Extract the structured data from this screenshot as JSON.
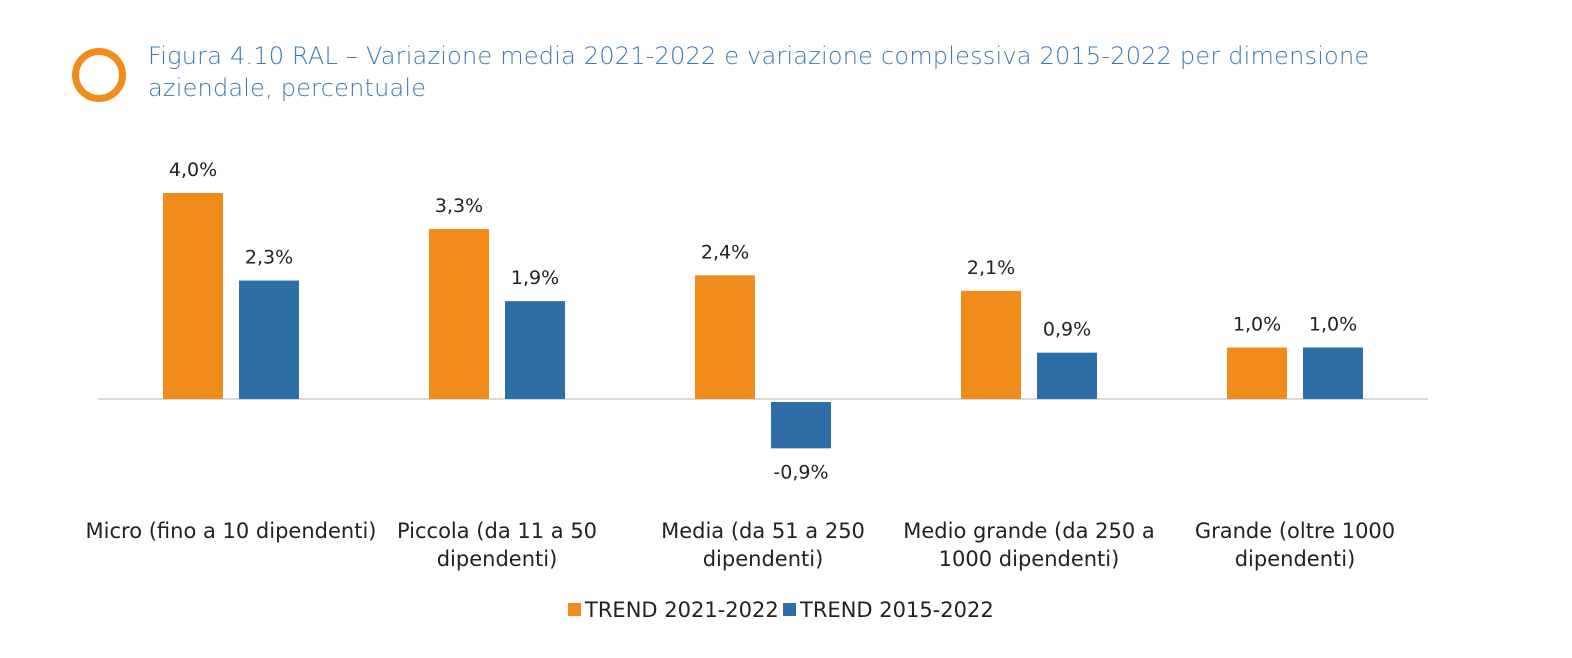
{
  "title": "Figura 4.10 RAL – Variazione media 2021-2022 e variazione complessiva 2015-2022 per dimensione aziendale, percentuale",
  "icon": "ring-icon",
  "chart_data": {
    "type": "bar",
    "title": "Figura 4.10 RAL – Variazione media 2021-2022 e variazione complessiva 2015-2022 per dimensione aziendale, percentuale",
    "xlabel": "",
    "ylabel": "",
    "grid": false,
    "ylim": [
      -1.5,
      4.8
    ],
    "legend_position": "bottom",
    "categories": [
      [
        "Micro (fino a 10 dipendenti)"
      ],
      [
        "Piccola (da 11 a 50",
        "dipendenti)"
      ],
      [
        "Media (da 51 a 250",
        "dipendenti)"
      ],
      [
        "Medio grande (da 250 a",
        "1000 dipendenti)"
      ],
      [
        "Grande (oltre 1000",
        "dipendenti)"
      ]
    ],
    "series": [
      {
        "name": "TREND 2021-2022",
        "color": "#f18c1b",
        "values": [
          4.0,
          3.3,
          2.4,
          2.1,
          1.0
        ],
        "labels": [
          "4,0%",
          "3,3%",
          "2,4%",
          "2,1%",
          "1,0%"
        ]
      },
      {
        "name": "TREND 2015-2022",
        "color": "#2e6ea8",
        "values": [
          2.3,
          1.9,
          -0.9,
          0.9,
          1.0
        ],
        "labels": [
          "2,3%",
          "1,9%",
          "-0,9%",
          "0,9%",
          "1,0%"
        ]
      }
    ]
  }
}
